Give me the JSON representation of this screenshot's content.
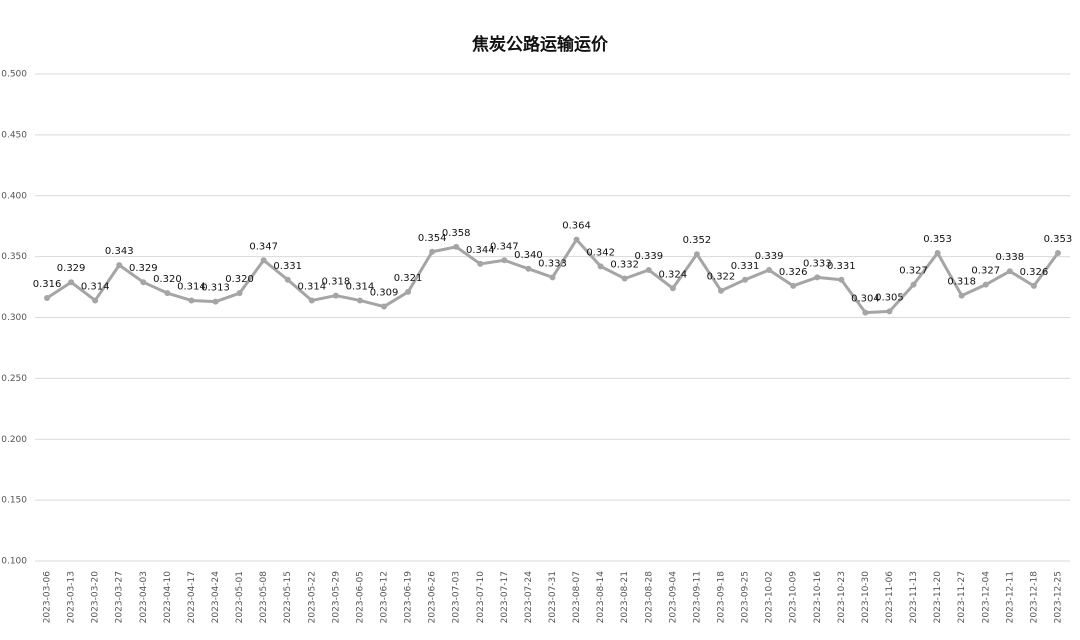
{
  "chart_data": {
    "type": "line",
    "title": "焦炭公路运输运价",
    "categories": [
      "2023-03-06",
      "2023-03-13",
      "2023-03-20",
      "2023-03-27",
      "2023-04-03",
      "2023-04-10",
      "2023-04-17",
      "2023-04-24",
      "2023-05-01",
      "2023-05-08",
      "2023-05-15",
      "2023-05-22",
      "2023-05-29",
      "2023-06-05",
      "2023-06-12",
      "2023-06-19",
      "2023-06-26",
      "2023-07-03",
      "2023-07-10",
      "2023-07-17",
      "2023-07-24",
      "2023-07-31",
      "2023-08-07",
      "2023-08-14",
      "2023-08-21",
      "2023-08-28",
      "2023-09-04",
      "2023-09-11",
      "2023-09-18",
      "2023-09-25",
      "2023-10-02",
      "2023-10-09",
      "2023-10-16",
      "2023-10-23",
      "2023-10-30",
      "2023-11-06",
      "2023-11-13",
      "2023-11-20",
      "2023-11-27",
      "2023-12-04",
      "2023-12-11",
      "2023-12-18",
      "2023-12-25"
    ],
    "values": [
      0.316,
      0.329,
      0.314,
      0.343,
      0.329,
      0.32,
      0.314,
      0.313,
      0.32,
      0.347,
      0.331,
      0.314,
      0.318,
      0.314,
      0.309,
      0.321,
      0.354,
      0.358,
      0.344,
      0.347,
      0.34,
      0.333,
      0.364,
      0.342,
      0.332,
      0.339,
      0.324,
      0.352,
      0.322,
      0.331,
      0.339,
      0.326,
      0.333,
      0.331,
      0.304,
      0.305,
      0.327,
      0.353,
      0.318,
      0.327,
      0.338,
      0.326,
      0.353
    ],
    "value_labels": [
      "0.316",
      "0.329",
      "0.314",
      "0.343",
      "0.329",
      "0.320",
      "0.314",
      "0.313",
      "0.320",
      "0.347",
      "0.331",
      "0.314",
      "0.318",
      "0.314",
      "0.309",
      "0.321",
      "0.354",
      "0.358",
      "0.344",
      "0.347",
      "0.340",
      "0.333",
      "0.364",
      "0.342",
      "0.332",
      "0.339",
      "0.324",
      "0.352",
      "0.322",
      "0.331",
      "0.339",
      "0.326",
      "0.333",
      "0.331",
      "0.304",
      "0.305",
      "0.327",
      "0.353",
      "0.318",
      "0.327",
      "0.338",
      "0.326",
      "0.353"
    ],
    "color": "#a5a5a5",
    "ylim": [
      0.1,
      0.5
    ],
    "yticks": [
      {
        "value": 0.1,
        "label": "0.100"
      },
      {
        "value": 0.15,
        "label": "0.150"
      },
      {
        "value": 0.2,
        "label": "0.200"
      },
      {
        "value": 0.25,
        "label": "0.250"
      },
      {
        "value": 0.3,
        "label": "0.300"
      },
      {
        "value": 0.35,
        "label": "0.350"
      },
      {
        "value": 0.4,
        "label": "0.400"
      },
      {
        "value": 0.45,
        "label": "0.450"
      },
      {
        "value": 0.5,
        "label": "0.500"
      }
    ],
    "grid": true
  }
}
